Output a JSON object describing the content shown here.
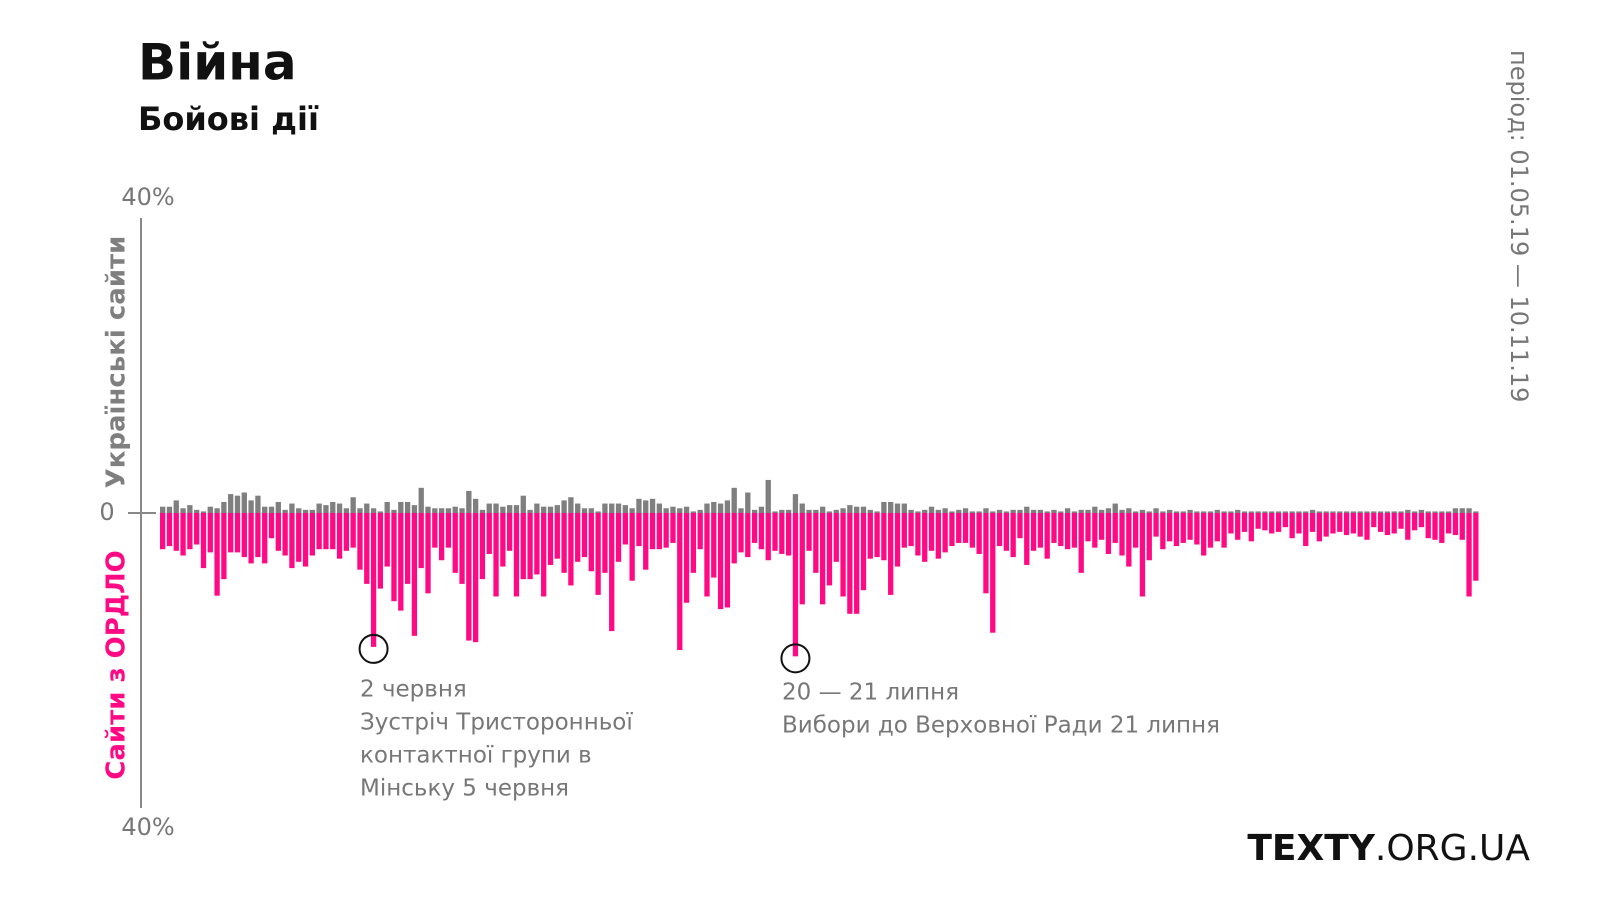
{
  "chart_data": {
    "type": "diverging_bar",
    "title": "Війна",
    "subtitle": "Бойові дії",
    "period": "період: 01.05.19 — 10.11.19",
    "brand": {
      "bold": "TEXTY",
      "rest": ".ORG.UA"
    },
    "ylim": [
      -40,
      40
    ],
    "yticks": [
      {
        "value": 40,
        "label": "40%"
      },
      0,
      {
        "value": -40,
        "label": "40%"
      }
    ],
    "series": [
      {
        "name": "Українські сайти",
        "color": "#7f7f7f",
        "values": [
          0.8,
          0.8,
          1.6,
          0.6,
          1,
          0.4,
          0.2,
          0.8,
          0.6,
          1.4,
          2.4,
          2.2,
          2.6,
          1.6,
          2.2,
          0.8,
          0.8,
          1.4,
          0.4,
          1.2,
          0.6,
          0.4,
          0.4,
          1.2,
          1,
          1.4,
          1.2,
          0.6,
          2,
          0.6,
          1.2,
          0.6,
          0.2,
          1.4,
          0.4,
          1.4,
          1.4,
          1,
          3.2,
          0.8,
          0.6,
          0.6,
          0.6,
          0.8,
          0.6,
          2.8,
          1.8,
          0.4,
          1.2,
          1.2,
          0.8,
          1,
          1,
          2.2,
          0.4,
          1.2,
          0.8,
          0.8,
          1,
          1.6,
          2,
          1.2,
          0.6,
          0.6,
          0.2,
          1.2,
          1.2,
          1.2,
          1,
          0.6,
          1.8,
          1.6,
          1.8,
          1.2,
          0.6,
          0.8,
          0.6,
          0.8,
          0.2,
          0.4,
          1.2,
          1.4,
          1.2,
          1.6,
          3.2,
          0.6,
          2.6,
          0.4,
          0.8,
          4.2,
          0.2,
          0.4,
          0.4,
          2.4,
          1.2,
          0.4,
          0.4,
          0.8,
          0.2,
          0.4,
          0.6,
          1,
          0.8,
          0.8,
          0.4,
          0.2,
          1.4,
          1.4,
          1.2,
          1.2,
          0.4,
          0.2,
          0.4,
          0.8,
          0.4,
          0.6,
          0.2,
          0.4,
          0.6,
          0.2,
          0.2,
          0.6,
          0.2,
          0.4,
          0.2,
          0.4,
          0.4,
          0.8,
          0.4,
          0.4,
          0.2,
          0.4,
          0.2,
          0.6,
          0.2,
          0.4,
          0.4,
          0.8,
          0.4,
          0.6,
          1.2,
          0.4,
          0.6,
          0.2,
          0.4,
          0.2,
          0.6,
          0.2,
          0.4,
          0.2,
          0.2,
          0.4,
          0.2,
          0.2,
          0.2,
          0.4,
          0.2,
          0.2,
          0.4,
          0.2,
          0.2,
          0.2,
          0.2,
          0.2,
          0.2,
          0.2,
          0.2,
          0.2,
          0.2,
          0.4,
          0.2,
          0.2,
          0.2,
          0.2,
          0.2,
          0.2,
          0.2,
          0.2,
          0.2,
          0.2,
          0.2,
          0.2,
          0.2,
          0.4,
          0.2,
          0.4,
          0.2,
          0.2,
          0.2,
          0.2,
          0.6,
          0.6,
          0.6,
          0.2
        ]
      },
      {
        "name": "Сайти з ОРДЛО",
        "color": "#ff0a84",
        "values": [
          -4.6,
          -4.2,
          -4.8,
          -5.4,
          -4.6,
          -4,
          -7,
          -5,
          -10.5,
          -8.4,
          -5,
          -5,
          -5.6,
          -6.4,
          -5.6,
          -6.4,
          -3.2,
          -4.8,
          -5.4,
          -7,
          -6.2,
          -6.8,
          -5.4,
          -4.6,
          -4.6,
          -4.6,
          -5.8,
          -4.8,
          -4.4,
          -7.2,
          -9,
          -17,
          -9.6,
          -6.8,
          -11.2,
          -12.4,
          -9,
          -15.6,
          -7,
          -10.2,
          -4.4,
          -6,
          -4.4,
          -7.6,
          -9,
          -16.2,
          -16.4,
          -8.4,
          -5.2,
          -10.6,
          -6.8,
          -4.8,
          -10.6,
          -8.4,
          -8.4,
          -7.8,
          -10.6,
          -6.6,
          -5.8,
          -7.6,
          -9.2,
          -6.2,
          -5.6,
          -7.4,
          -10.4,
          -7.6,
          -15,
          -6.2,
          -4,
          -8.6,
          -4.2,
          -7.2,
          -4.6,
          -4.6,
          -4.4,
          -3.8,
          -17.4,
          -11.4,
          -7.6,
          -4.6,
          -10.6,
          -8.2,
          -12.2,
          -12,
          -6.4,
          -5,
          -5.6,
          -3.8,
          -4.6,
          -6,
          -4.8,
          -5.2,
          -5.4,
          -18.2,
          -11.6,
          -4.8,
          -7.6,
          -11.6,
          -9.2,
          -6.2,
          -10.6,
          -12.8,
          -12.8,
          -9.8,
          -5.8,
          -5.6,
          -6,
          -10.4,
          -6.8,
          -4.4,
          -4.2,
          -5.4,
          -6.2,
          -4.8,
          -5.8,
          -5,
          -4.2,
          -3.8,
          -3.8,
          -4.4,
          -5.2,
          -10.2,
          -15.2,
          -4.2,
          -4.8,
          -5.6,
          -3.2,
          -6.6,
          -4.8,
          -4.4,
          -5.8,
          -3.8,
          -4.2,
          -4.6,
          -4.4,
          -7.6,
          -3.6,
          -4.4,
          -3.4,
          -5.2,
          -3.8,
          -5.4,
          -6.8,
          -4.4,
          -10.6,
          -6,
          -3,
          -4.6,
          -3.6,
          -4.2,
          -3.8,
          -3.4,
          -4,
          -5.4,
          -4.4,
          -3.6,
          -4.4,
          -2.6,
          -3.4,
          -2.4,
          -3.6,
          -2,
          -2.2,
          -2.6,
          -2.4,
          -1.8,
          -3.2,
          -2.6,
          -4.2,
          -2.4,
          -3.6,
          -3,
          -2.6,
          -2.4,
          -2.8,
          -2.6,
          -3,
          -3.4,
          -1.8,
          -2.4,
          -2.8,
          -2.6,
          -2,
          -3.4,
          -2.2,
          -1.8,
          -3.2,
          -3.4,
          -3.8,
          -2.6,
          -2.8,
          -3.4,
          -10.6,
          -8.6
        ]
      }
    ],
    "annotations": [
      {
        "date": "2 червня",
        "lines": [
          "Зустріч Тристоронньої",
          "контактної групи в",
          "Мінську 5 червня"
        ]
      },
      {
        "date": "20 — 21 липня",
        "lines": [
          "Вибори до Верховної Ради 21 липня"
        ]
      }
    ]
  }
}
